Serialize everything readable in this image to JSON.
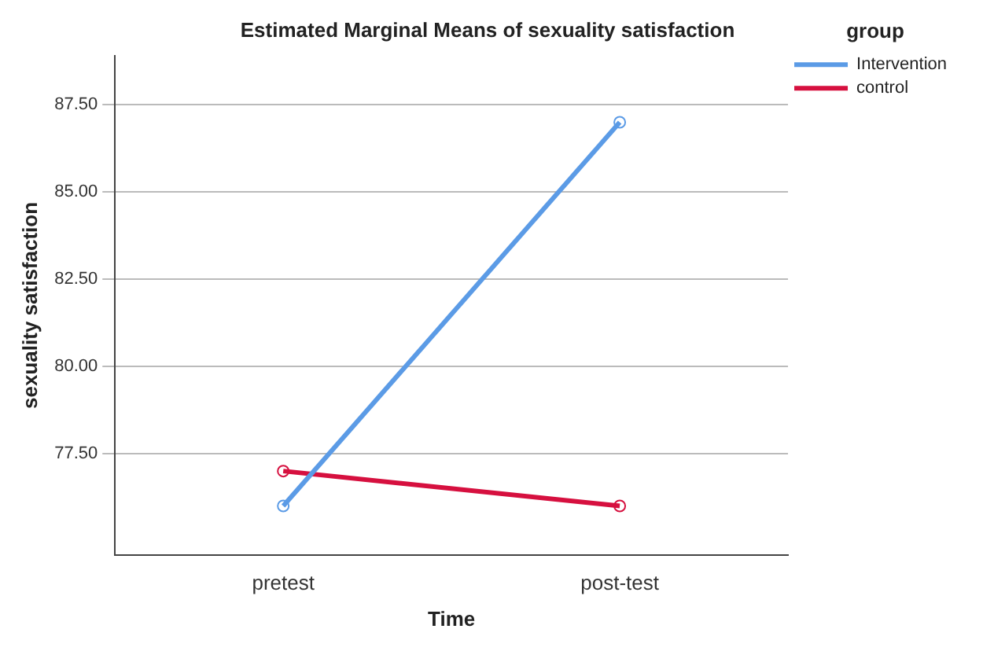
{
  "chart_data": {
    "type": "line",
    "title": "Estimated Marginal Means of sexuality satisfaction",
    "xlabel": "Time",
    "ylabel": "sexuality satisfaction",
    "legend_title": "group",
    "categories": [
      "pretest",
      "post-test"
    ],
    "series": [
      {
        "name": "Intervention",
        "color": "#5b9be6",
        "values": [
          76.0,
          87.0
        ]
      },
      {
        "name": "control",
        "color": "#d6103f",
        "values": [
          77.0,
          76.0
        ]
      }
    ],
    "ylim": [
      74.6,
      88.9
    ],
    "yticks": [
      {
        "value": 77.5,
        "label": "77.50"
      },
      {
        "value": 80,
        "label": "80.00"
      },
      {
        "value": 82.5,
        "label": "82.50"
      },
      {
        "value": 85,
        "label": "85.00"
      },
      {
        "value": 87.5,
        "label": "87.50"
      }
    ],
    "grid": "y",
    "legend": "top right",
    "marker": "circle",
    "line_style": "solid"
  }
}
